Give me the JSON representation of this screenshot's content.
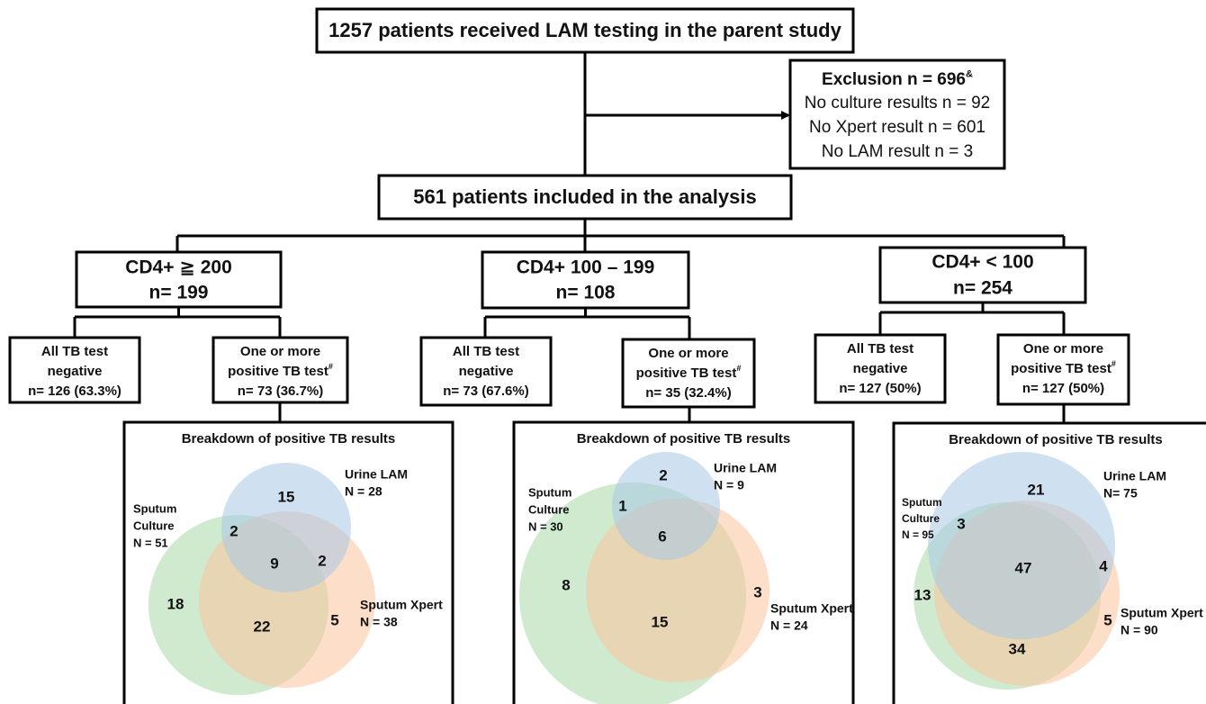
{
  "top_box": "1257 patients received LAM testing in the parent study",
  "exclusion": {
    "title": "Exclusion n = 696",
    "title_sup": "&",
    "lines": [
      "No culture results n = 92",
      "No Xpert result n = 601",
      "No LAM result n = 3"
    ]
  },
  "included_box": "561 patients included in the analysis",
  "groups": [
    {
      "title": "CD4+ ≧ 200",
      "n": "n= 199",
      "negative": [
        "All TB test",
        "negative",
        "n= 126 (63.3%)"
      ],
      "positive": {
        "lines": [
          "One or more",
          "positive TB test"
        ],
        "sup": "#",
        "n": "n= 73 (36.7%)"
      },
      "venn": {
        "title": "Breakdown of positive TB results",
        "urine_lam": {
          "name": "Urine LAM",
          "n": "N = 28"
        },
        "sputum_culture": {
          "name": [
            "Sputum",
            "Culture"
          ],
          "n": "N = 51"
        },
        "sputum_xpert": {
          "name": "Sputum Xpert",
          "n": "N = 38"
        },
        "counts": [
          15,
          2,
          9,
          2,
          18,
          22,
          5
        ]
      }
    },
    {
      "title": "CD4+ 100 – 199",
      "n": "n= 108",
      "negative": [
        "All TB test",
        "negative",
        "n= 73 (67.6%)"
      ],
      "positive": {
        "lines": [
          "One or more",
          "positive TB test"
        ],
        "sup": "#",
        "n": "n= 35 (32.4%)"
      },
      "venn": {
        "title": "Breakdown of positive TB results",
        "urine_lam": {
          "name": "Urine LAM",
          "n": "N = 9"
        },
        "sputum_culture": {
          "name": [
            "Sputum",
            "Culture"
          ],
          "n": "N = 30"
        },
        "sputum_xpert": {
          "name": "Sputum Xpert",
          "n": "N = 24"
        },
        "counts": [
          2,
          1,
          6,
          8,
          15,
          3
        ]
      }
    },
    {
      "title": "CD4+ < 100",
      "n": "n= 254",
      "negative": [
        "All TB test",
        "negative",
        "n= 127 (50%)"
      ],
      "positive": {
        "lines": [
          "One or more",
          "positive TB test"
        ],
        "sup": "#",
        "n": "n= 127 (50%)"
      },
      "venn": {
        "title": "Breakdown of positive TB results",
        "urine_lam": {
          "name": "Urine LAM",
          "n": "N= 75"
        },
        "sputum_culture": {
          "name": [
            "Sputum",
            "Culture"
          ],
          "n": "N = 95"
        },
        "sputum_xpert": {
          "name": "Sputum Xpert",
          "n": "N = 90"
        },
        "counts": [
          21,
          3,
          47,
          4,
          13,
          34,
          5
        ]
      }
    }
  ]
}
